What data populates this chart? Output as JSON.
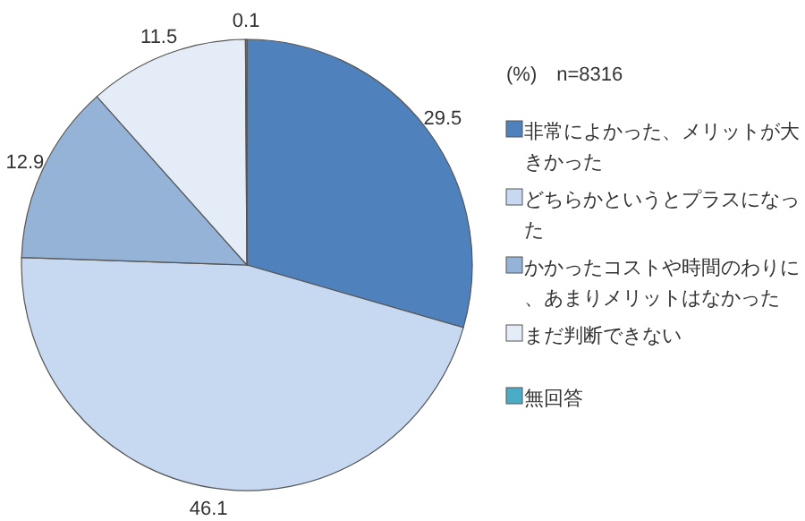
{
  "chart_data": {
    "type": "pie",
    "legend_title": "(%)　n=8316",
    "categories": [
      "非常によかった、メリットが大きかった",
      "どちらかというとプラスになった",
      "かかったコストや時間のわりに、あまりメリットはなかった",
      "まだ判断できない",
      "無回答"
    ],
    "values": [
      29.5,
      46.1,
      12.9,
      11.5,
      0.1
    ],
    "colors": [
      "#4f81bd",
      "#c6d9f1",
      "#95b3d7",
      "#e4ecf7",
      "#4bacc6"
    ],
    "data_labels": true,
    "legend": "right"
  }
}
